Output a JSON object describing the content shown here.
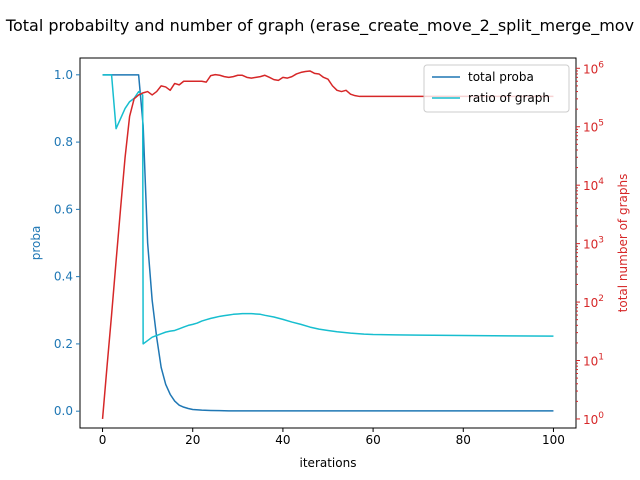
{
  "chart_data": {
    "type": "line",
    "title": "Total probabilty and number of graph (erase_create_move_2_split_merge_mov",
    "xlabel": "iterations",
    "ylabel_left": "proba",
    "ylabel_right": "total number of graphs",
    "xlim": [
      -5,
      105
    ],
    "ylim_left": [
      -0.05,
      1.05
    ],
    "ylim_right": [
      0.7,
      1500000
    ],
    "y_right_scale": "log",
    "x_ticks": [
      0,
      20,
      40,
      60,
      80,
      100
    ],
    "x_tick_labels": [
      "0",
      "20",
      "40",
      "60",
      "80",
      "100"
    ],
    "y_left_ticks": [
      0.0,
      0.2,
      0.4,
      0.6,
      0.8,
      1.0
    ],
    "y_left_tick_labels": [
      "0.0",
      "0.2",
      "0.4",
      "0.6",
      "0.8",
      "1.0"
    ],
    "y_right_ticks": [
      1,
      10,
      100,
      1000,
      10000,
      100000,
      1000000
    ],
    "y_right_tick_labels": [
      {
        "base": "10",
        "exp": "0"
      },
      {
        "base": "10",
        "exp": "1"
      },
      {
        "base": "10",
        "exp": "2"
      },
      {
        "base": "10",
        "exp": "3"
      },
      {
        "base": "10",
        "exp": "4"
      },
      {
        "base": "10",
        "exp": "5"
      },
      {
        "base": "10",
        "exp": "6"
      }
    ],
    "legend_placement": "top-right",
    "grid": false,
    "series": [
      {
        "name": "total proba",
        "axis": "left",
        "color": "#1f77b4",
        "x": [
          0,
          1,
          2,
          3,
          4,
          5,
          6,
          7,
          8,
          9,
          10,
          11,
          12,
          13,
          14,
          15,
          16,
          17,
          18,
          19,
          20,
          22,
          24,
          26,
          28,
          30,
          35,
          40,
          50,
          60,
          70,
          80,
          90,
          100
        ],
        "y": [
          1.0,
          1.0,
          1.0,
          1.0,
          1.0,
          1.0,
          1.0,
          1.0,
          1.0,
          0.85,
          0.5,
          0.33,
          0.22,
          0.13,
          0.08,
          0.05,
          0.03,
          0.018,
          0.012,
          0.008,
          0.005,
          0.003,
          0.002,
          0.0015,
          0.001,
          0.001,
          0.001,
          0.001,
          0.001,
          0.001,
          0.001,
          0.001,
          0.001,
          0.001
        ]
      },
      {
        "name": "ratio of graph",
        "axis": "left",
        "color": "#17becf",
        "x": [
          0,
          1,
          2,
          3,
          4,
          5,
          6,
          7,
          8,
          8.9,
          9,
          10,
          11,
          12,
          13,
          14,
          15,
          16,
          17,
          18,
          19,
          20,
          21,
          22,
          23,
          24,
          25,
          26,
          27,
          28,
          29,
          30,
          31,
          32,
          33,
          34,
          35,
          36,
          38,
          40,
          42,
          44,
          46,
          48,
          50,
          52,
          55,
          58,
          60,
          65,
          70,
          80,
          90,
          100
        ],
        "y": [
          1.0,
          1.0,
          1.0,
          0.84,
          0.87,
          0.9,
          0.92,
          0.93,
          0.95,
          0.94,
          0.2,
          0.21,
          0.22,
          0.225,
          0.23,
          0.235,
          0.238,
          0.24,
          0.245,
          0.25,
          0.255,
          0.258,
          0.262,
          0.268,
          0.272,
          0.276,
          0.279,
          0.282,
          0.284,
          0.286,
          0.288,
          0.289,
          0.29,
          0.29,
          0.29,
          0.289,
          0.288,
          0.285,
          0.28,
          0.273,
          0.265,
          0.258,
          0.25,
          0.244,
          0.24,
          0.236,
          0.232,
          0.229,
          0.228,
          0.227,
          0.226,
          0.225,
          0.224,
          0.223
        ]
      },
      {
        "name": "total number of graphs",
        "axis": "right",
        "color": "#d62728",
        "x": [
          0,
          1,
          2,
          3,
          4,
          5,
          6,
          7,
          8,
          9,
          10,
          11,
          12,
          13,
          14,
          15,
          16,
          17,
          18,
          19,
          20,
          21,
          22,
          23,
          24,
          25,
          26,
          27,
          28,
          29,
          30,
          31,
          32,
          33,
          34,
          35,
          36,
          37,
          38,
          39,
          40,
          41,
          42,
          43,
          44,
          45,
          46,
          47,
          48,
          49,
          50,
          51,
          52,
          53,
          54,
          55,
          56,
          57,
          58,
          60,
          65,
          70,
          80,
          90,
          100
        ],
        "y": [
          1,
          8,
          60,
          500,
          4000,
          30000,
          150000,
          300000,
          350000,
          380000,
          400000,
          350000,
          400000,
          500000,
          480000,
          420000,
          550000,
          520000,
          600000,
          600000,
          600000,
          600000,
          600000,
          580000,
          750000,
          780000,
          760000,
          720000,
          700000,
          720000,
          760000,
          760000,
          700000,
          680000,
          700000,
          720000,
          760000,
          700000,
          640000,
          620000,
          700000,
          680000,
          720000,
          800000,
          850000,
          880000,
          900000,
          820000,
          800000,
          700000,
          650000,
          500000,
          420000,
          400000,
          420000,
          360000,
          340000,
          330000,
          330000,
          330000,
          330000,
          330000,
          330000,
          330000,
          330000
        ]
      }
    ]
  }
}
